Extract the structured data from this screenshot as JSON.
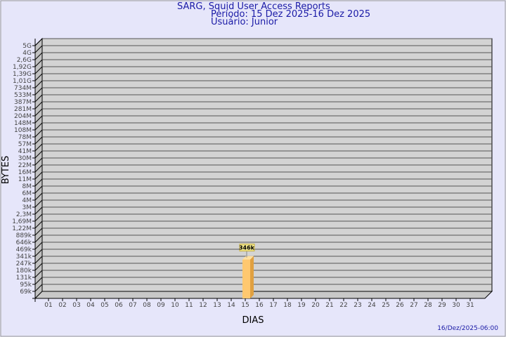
{
  "header": {
    "title": "SARG, Squid User Access Reports",
    "period": "Período: 15 Dez 2025-16 Dez 2025",
    "user": "Usuário: Junior"
  },
  "footer": {
    "timestamp": "16/Dez/2025-06:00"
  },
  "chart_data": {
    "type": "bar",
    "xlabel": "DIAS",
    "ylabel": "BYTES",
    "categories": [
      "01",
      "02",
      "03",
      "04",
      "05",
      "06",
      "07",
      "08",
      "09",
      "10",
      "11",
      "12",
      "13",
      "14",
      "15",
      "16",
      "17",
      "18",
      "19",
      "20",
      "21",
      "22",
      "23",
      "24",
      "25",
      "26",
      "27",
      "28",
      "29",
      "30",
      "31"
    ],
    "y_ticks": [
      "5G",
      "4G",
      "2,6G",
      "1,92G",
      "1,39G",
      "1,01G",
      "734M",
      "533M",
      "387M",
      "281M",
      "204M",
      "148M",
      "108M",
      "78M",
      "57M",
      "41M",
      "30M",
      "22M",
      "16M",
      "11M",
      "8M",
      "6M",
      "4M",
      "3M",
      "2,3M",
      "1,69M",
      "1,22M",
      "889k",
      "646k",
      "469k",
      "341k",
      "247k",
      "180k",
      "131k",
      "95k",
      "69k"
    ],
    "y_scale": "log",
    "grid": true,
    "series": [
      {
        "values": [
          {
            "x": "15",
            "y": 346000,
            "label": "346k"
          }
        ]
      }
    ],
    "colors": {
      "bar": "#ffc870",
      "bar_side": "#e0a040",
      "plot_bg": "#d3d3d3",
      "title": "#1a1aa6"
    }
  }
}
